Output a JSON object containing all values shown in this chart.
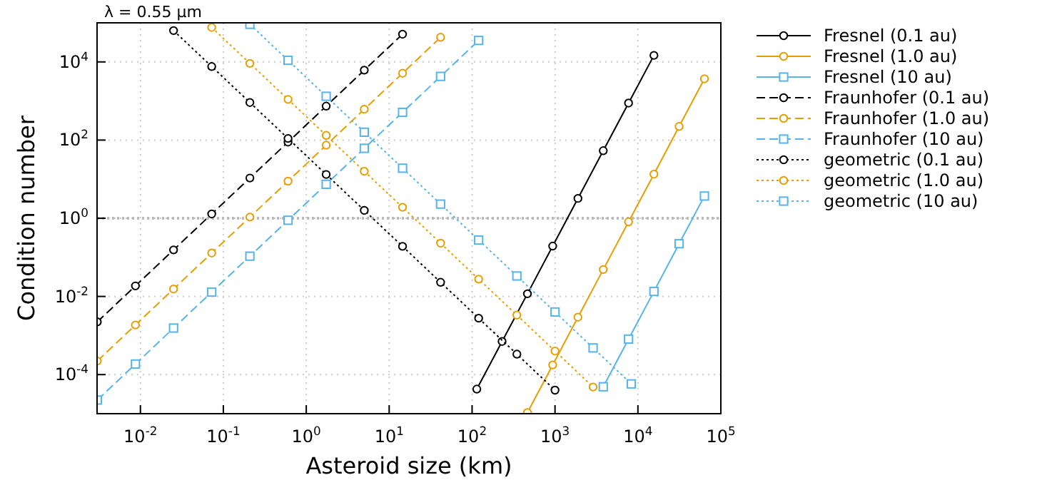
{
  "chart_data": {
    "type": "line",
    "xlabel": "Asteroid size (km)",
    "ylabel": "Condition number",
    "log": "xy",
    "grid": true,
    "legend": "right",
    "annotations": [
      "λ = 0.55 μm"
    ],
    "xlim": [
      0.003,
      100000
    ],
    "ylim": [
      1e-05,
      100000
    ],
    "xticks": [
      {
        "value": 0.01,
        "label": "10$^{-2}$"
      },
      {
        "value": 0.1,
        "label": "10$^{-1}$"
      },
      {
        "value": 1,
        "label": "10$^{0}$"
      },
      {
        "value": 10,
        "label": "10$^{1}$"
      },
      {
        "value": 100,
        "label": "10$^{2}$"
      },
      {
        "value": 1000,
        "label": "10$^{3}$"
      },
      {
        "value": 10000,
        "label": "10$^{4}$"
      },
      {
        "value": 100000,
        "label": "10$^{5}$"
      }
    ],
    "yticks": [
      {
        "value": 0.0001,
        "label": "10$^{-4}$"
      },
      {
        "value": 0.01,
        "label": "10$^{-2}$"
      },
      {
        "value": 1,
        "label": "10$^{0}$"
      },
      {
        "value": 100,
        "label": "10$^{2}$"
      },
      {
        "value": 10000,
        "label": "10$^{4}$"
      }
    ],
    "ref_lines": [
      {
        "axis": "y",
        "value": 1,
        "color": "#bbbbbb",
        "line_style": "dotted"
      }
    ],
    "series": [
      {
        "name": "Fresnel (0.1 au)",
        "color": "#000000",
        "marker": "circle",
        "line_style": "solid",
        "x": [
          114,
          230,
          465,
          938,
          1890,
          3820,
          7710,
          15600
        ],
        "values": [
          4.25e-05,
          0.000705,
          0.0117,
          0.194,
          3.22,
          53.5,
          887,
          14700
        ]
      },
      {
        "name": "Fresnel (1.0 au)",
        "color": "#e69f00",
        "marker": "circle",
        "line_style": "solid",
        "x": [
          465,
          938,
          1890,
          3820,
          7710,
          15600,
          31400,
          63400
        ],
        "values": [
          1.07e-05,
          0.000177,
          0.00294,
          0.0488,
          0.809,
          13.4,
          223,
          3700
        ]
      },
      {
        "name": "Fresnel (10 au)",
        "color": "#56b4e9",
        "marker": "square",
        "line_style": "solid",
        "x": [
          3820,
          7710,
          15600,
          31400,
          63400
        ],
        "values": [
          4.88e-05,
          0.000809,
          0.0134,
          0.223,
          3.7
        ]
      },
      {
        "name": "Fraunhofer (0.1 au)",
        "color": "#000000",
        "marker": "circle",
        "line_style": "dashed",
        "x": [
          0.00302,
          0.00871,
          0.0251,
          0.0724,
          0.209,
          0.603,
          1.74,
          5.01,
          14.5
        ],
        "values": [
          0.00223,
          0.0186,
          0.155,
          1.29,
          10.7,
          88.9,
          740,
          6150,
          51200
        ]
      },
      {
        "name": "Fraunhofer (1.0 au)",
        "color": "#e69f00",
        "marker": "circle",
        "line_style": "dashed",
        "x": [
          0.00302,
          0.00871,
          0.0251,
          0.0724,
          0.209,
          0.603,
          1.74,
          5.01,
          14.5,
          41.7
        ],
        "values": [
          0.000223,
          0.00186,
          0.0155,
          0.129,
          1.07,
          8.89,
          74,
          615,
          5120,
          42600
        ]
      },
      {
        "name": "Fraunhofer (10 au)",
        "color": "#56b4e9",
        "marker": "square",
        "line_style": "dashed",
        "x": [
          0.00302,
          0.00871,
          0.0251,
          0.0724,
          0.209,
          0.603,
          1.74,
          5.01,
          14.5,
          41.7,
          120
        ],
        "values": [
          2.23e-05,
          0.000186,
          0.00155,
          0.0129,
          0.107,
          0.889,
          7.4,
          61.5,
          512,
          4260,
          35400
        ]
      },
      {
        "name": "geometric (0.1 au)",
        "color": "#000000",
        "marker": "circle",
        "line_style": "dotted",
        "x": [
          0.0251,
          0.0724,
          0.209,
          0.603,
          1.74,
          5.01,
          14.5,
          41.7,
          120,
          347,
          1000
        ],
        "values": [
          63400,
          7620,
          916,
          110,
          13.2,
          1.59,
          0.191,
          0.023,
          0.00277,
          0.000333,
          4e-05
        ]
      },
      {
        "name": "geometric (1.0 au)",
        "color": "#e69f00",
        "marker": "circle",
        "line_style": "dotted",
        "x": [
          0.0724,
          0.209,
          0.603,
          1.74,
          5.01,
          14.5,
          41.7,
          120,
          347,
          1000,
          2880
        ],
        "values": [
          76200,
          9160,
          1100,
          132,
          15.9,
          1.91,
          0.23,
          0.0277,
          0.00333,
          0.0004,
          4.81e-05
        ]
      },
      {
        "name": "geometric (10 au)",
        "color": "#56b4e9",
        "marker": "square",
        "line_style": "dotted",
        "x": [
          0.209,
          0.603,
          1.74,
          5.01,
          14.5,
          41.7,
          120,
          347,
          1000,
          2880,
          8320
        ],
        "values": [
          91600,
          11000,
          1320,
          159,
          19.1,
          2.3,
          0.277,
          0.0333,
          0.004,
          0.000481,
          5.78e-05
        ]
      }
    ]
  }
}
